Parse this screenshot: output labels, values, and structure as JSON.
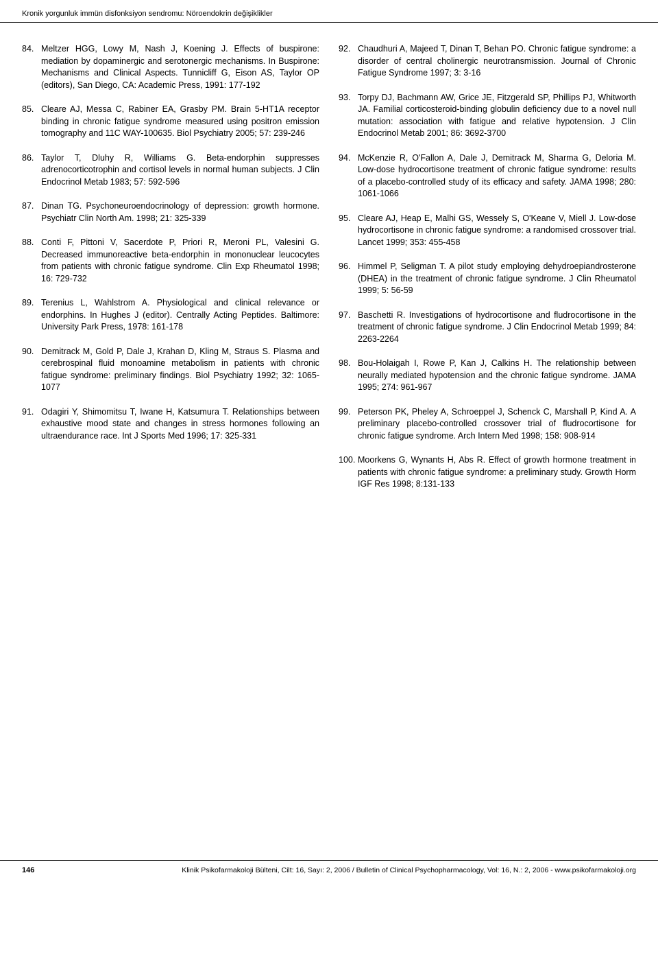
{
  "header": {
    "title": "Kronik yorgunluk immün disfonksiyon sendromu: Nöroendokrin değişiklikler"
  },
  "refs_left": [
    {
      "num": "84.",
      "text": "Meltzer HGG, Lowy M, Nash J, Koening J. Effects of buspirone: mediation by dopaminergic and serotonergic mechanisms. In Buspirone: Mechanisms and Clinical Aspects. Tunnicliff G, Eison AS, Taylor OP (editors), San Diego, CA: Academic Press, 1991: 177-192"
    },
    {
      "num": "85.",
      "text": "Cleare AJ, Messa C, Rabiner EA, Grasby PM. Brain 5-HT1A receptor binding in chronic fatigue syndrome measured using positron emission tomography and 11C WAY-100635. Biol Psychiatry 2005; 57: 239-246"
    },
    {
      "num": "86.",
      "text": "Taylor T, Dluhy R, Williams G. Beta-endorphin suppresses adrenocorticotrophin and cortisol levels in normal human subjects. J Clin Endocrinol Metab 1983; 57: 592-596"
    },
    {
      "num": "87.",
      "text": "Dinan TG. Psychoneuroendocrinology of depression: growth hormone. Psychiatr Clin North Am. 1998; 21: 325-339"
    },
    {
      "num": "88.",
      "text": "Conti F, Pittoni V, Sacerdote P, Priori R, Meroni PL, Valesini G. Decreased immunoreactive beta-endorphin in mononuclear leucocytes from patients with chronic fatigue syndrome. Clin Exp Rheumatol 1998; 16: 729-732"
    },
    {
      "num": "89.",
      "text": "Terenius L, Wahlstrom A. Physiological and clinical relevance or endorphins. In Hughes J (editor). Centrally Acting Peptides. Baltimore: University Park Press, 1978: 161-178"
    },
    {
      "num": "90.",
      "text": "Demitrack M, Gold P, Dale J, Krahan D, Kling M, Straus S. Plasma and cerebrospinal fluid monoamine metabolism in patients with chronic fatigue syndrome: preliminary findings. Biol Psychiatry 1992; 32: 1065-1077"
    },
    {
      "num": "91.",
      "text": "Odagiri Y, Shimomitsu T, Iwane H, Katsumura T. Relationships between exhaustive mood state and changes in stress hormones following an ultraendurance race. Int J Sports Med 1996; 17: 325-331"
    }
  ],
  "refs_right": [
    {
      "num": "92.",
      "text": "Chaudhuri A, Majeed T, Dinan T, Behan PO. Chronic fatigue syndrome: a disorder of central cholinergic neurotransmission. Journal of Chronic Fatigue Syndrome 1997; 3: 3-16"
    },
    {
      "num": "93.",
      "text": "Torpy DJ, Bachmann AW, Grice JE, Fitzgerald SP, Phillips PJ, Whitworth JA. Familial corticosteroid-binding globulin deficiency due to a novel null mutation: association with fatigue and relative hypotension. J Clin Endocrinol Metab 2001; 86: 3692-3700"
    },
    {
      "num": "94.",
      "text": "McKenzie R, O'Fallon A, Dale J, Demitrack M, Sharma G, Deloria M. Low-dose hydrocortisone treatment of chronic fatigue syndrome: results of a placebo-controlled study of its efficacy and safety. JAMA 1998; 280: 1061-1066"
    },
    {
      "num": "95.",
      "text": "Cleare AJ, Heap E, Malhi GS, Wessely S, O'Keane V, Miell J. Low-dose hydrocortisone in chronic fatigue syndrome: a randomised crossover trial. Lancet 1999; 353: 455-458"
    },
    {
      "num": "96.",
      "text": "Himmel P, Seligman T. A pilot study employing dehydroepiandrosterone (DHEA) in the treatment of chronic fatigue syndrome. J Clin Rheumatol 1999; 5: 56-59"
    },
    {
      "num": "97.",
      "text": "Baschetti R. Investigations of hydrocortisone and fludrocortisone in the treatment of chronic fatigue syndrome. J Clin Endocrinol Metab 1999; 84: 2263-2264"
    },
    {
      "num": "98.",
      "text": "Bou-Holaigah I, Rowe P, Kan J, Calkins H. The relationship between neurally mediated hypotension and the chronic fatigue syndrome. JAMA 1995; 274: 961-967"
    },
    {
      "num": "99.",
      "text": "Peterson PK, Pheley A, Schroeppel J, Schenck C, Marshall P, Kind A. A preliminary placebo-controlled crossover trial of fludrocortisone for chronic fatigue syndrome. Arch Intern Med 1998; 158: 908-914"
    },
    {
      "num": "100.",
      "text": "Moorkens G, Wynants H, Abs R. Effect of growth hormone treatment in patients with chronic fatigue syndrome: a preliminary study. Growth Horm IGF Res 1998; 8:131-133"
    }
  ],
  "footer": {
    "page": "146",
    "citation": "Klinik Psikofarmakoloji Bülteni, Cilt: 16, Sayı: 2, 2006 / Bulletin of Clinical Psychopharmacology, Vol: 16, N.: 2, 2006 - www.psikofarmakoloji.org"
  }
}
